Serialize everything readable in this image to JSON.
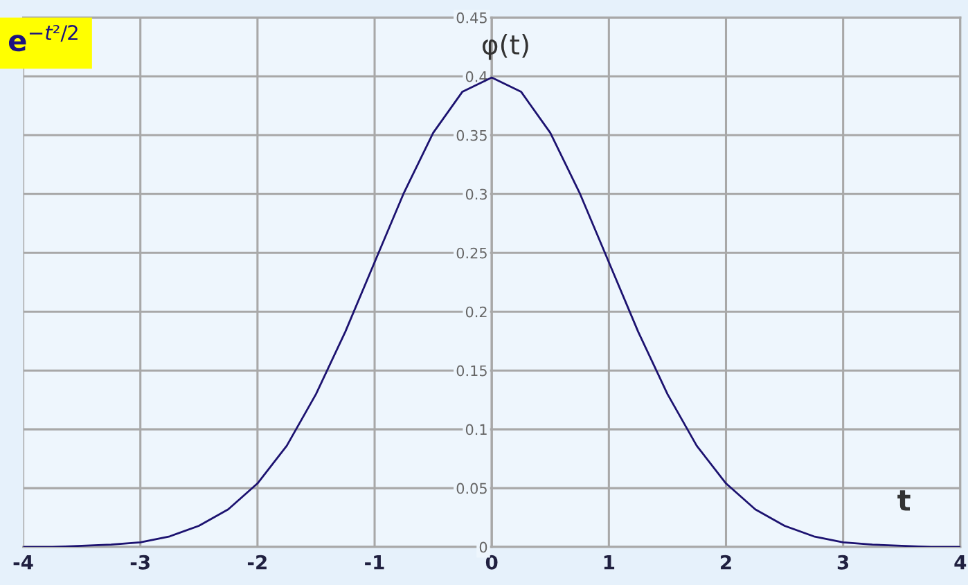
{
  "chart_data": {
    "type": "line",
    "xlabel": "t",
    "ylabel": "φ(t)",
    "annotations": [
      "e$^{−t²/2}$"
    ],
    "x": [
      -4,
      -3.75,
      -3.5,
      -3.25,
      -3,
      -2.75,
      -2.5,
      -2.25,
      -2,
      -1.75,
      -1.5,
      -1.25,
      -1,
      -0.75,
      -0.5,
      -0.25,
      0,
      0.25,
      0.5,
      0.75,
      1,
      1.25,
      1.5,
      1.75,
      2,
      2.25,
      2.5,
      2.75,
      3,
      3.25,
      3.5,
      3.75,
      4
    ],
    "series": [
      {
        "color": "#1c1270",
        "values": [
          0.0,
          0.0,
          0.001,
          0.002,
          0.004,
          0.009,
          0.018,
          0.032,
          0.054,
          0.086,
          0.13,
          0.183,
          0.242,
          0.301,
          0.352,
          0.387,
          0.399,
          0.387,
          0.352,
          0.301,
          0.242,
          0.183,
          0.13,
          0.086,
          0.054,
          0.032,
          0.018,
          0.009,
          0.004,
          0.002,
          0.001,
          0.0,
          0.0
        ]
      }
    ],
    "xlim": [
      -4,
      4
    ],
    "xticks": [
      -4,
      -3,
      -2,
      -1,
      0,
      1,
      2,
      3,
      4
    ],
    "ylim": [
      0,
      0.45
    ],
    "yticks": [
      0,
      0.05,
      0.1,
      0.15,
      0.2,
      0.25,
      0.3,
      0.35,
      0.4,
      0.45
    ],
    "grid": true,
    "legend": false,
    "marker": "none",
    "line_style": "solid"
  }
}
